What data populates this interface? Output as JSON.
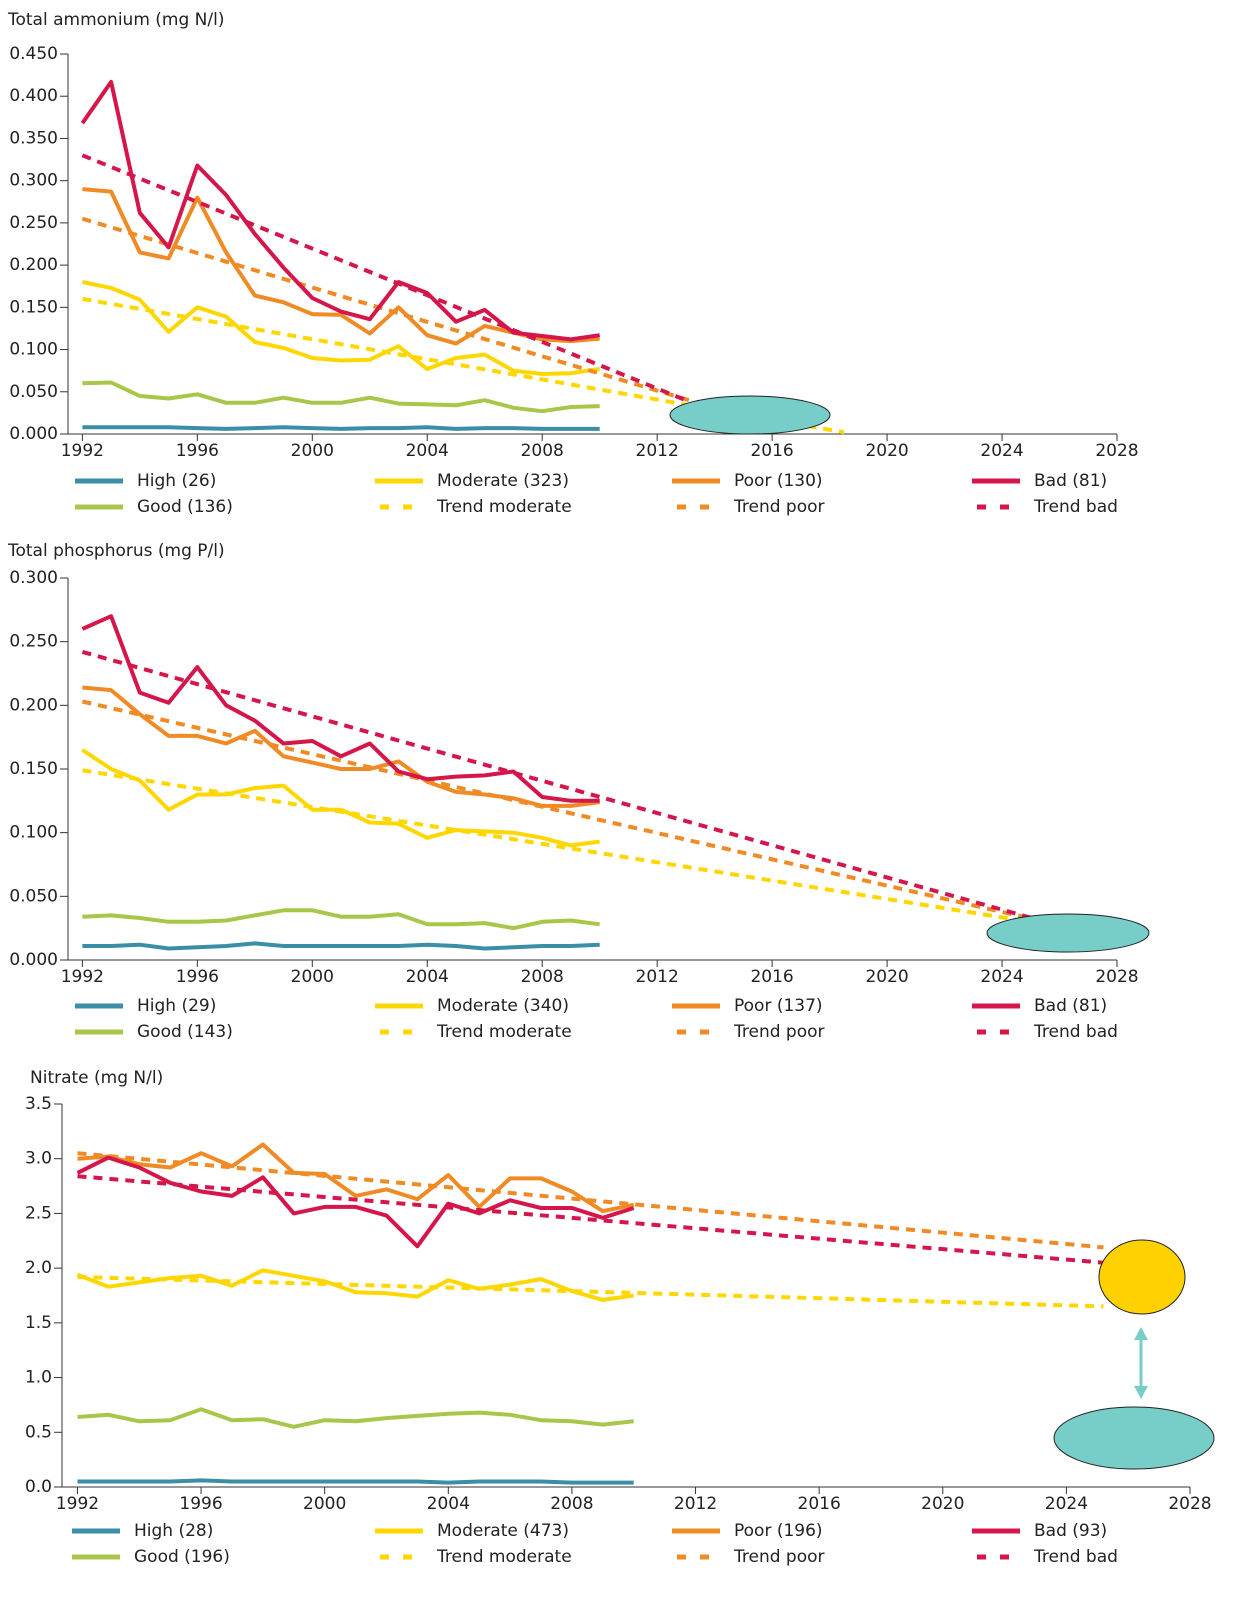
{
  "chart_data": [
    {
      "type": "line",
      "title": "Total ammonium (mg N/l)",
      "x": [
        1992,
        1993,
        1994,
        1995,
        1996,
        1997,
        1998,
        1999,
        2000,
        2001,
        2002,
        2003,
        2004,
        2005,
        2006,
        2007,
        2008,
        2009,
        2010
      ],
      "xlim": [
        1991.5,
        2028
      ],
      "xticks": [
        1992,
        1996,
        2000,
        2004,
        2008,
        2012,
        2016,
        2020,
        2024,
        2028
      ],
      "ylim": [
        0,
        0.45
      ],
      "yticks": [
        {
          "value": 0,
          "label": "0.000"
        },
        {
          "value": 0.05,
          "label": "0.050"
        },
        {
          "value": 0.1,
          "label": "0.100"
        },
        {
          "value": 0.15,
          "label": "0.150"
        },
        {
          "value": 0.2,
          "label": "0.200"
        },
        {
          "value": 0.25,
          "label": "0.250"
        },
        {
          "value": 0.3,
          "label": "0.300"
        },
        {
          "value": 0.35,
          "label": "0.350"
        },
        {
          "value": 0.4,
          "label": "0.400"
        },
        {
          "value": 0.45,
          "label": "0.450"
        }
      ],
      "series": [
        {
          "name": "High (26)",
          "color": "#3a8fa6",
          "values": [
            0.008,
            0.008,
            0.008,
            0.008,
            0.007,
            0.006,
            0.007,
            0.008,
            0.007,
            0.006,
            0.007,
            0.007,
            0.008,
            0.006,
            0.007,
            0.007,
            0.006,
            0.006,
            0.006
          ]
        },
        {
          "name": "Good (136)",
          "color": "#a8c64a",
          "values": [
            0.06,
            0.061,
            0.045,
            0.042,
            0.047,
            0.037,
            0.037,
            0.043,
            0.037,
            0.037,
            0.043,
            0.036,
            0.035,
            0.034,
            0.04,
            0.031,
            0.027,
            0.032,
            0.033
          ]
        },
        {
          "name": "Moderate (323)",
          "color": "#ffd700",
          "values": [
            0.18,
            0.173,
            0.159,
            0.121,
            0.15,
            0.139,
            0.109,
            0.102,
            0.09,
            0.087,
            0.088,
            0.104,
            0.077,
            0.09,
            0.094,
            0.075,
            0.071,
            0.072,
            0.077
          ]
        },
        {
          "name": "Trend moderate",
          "color": "#ffd700",
          "dashed": true,
          "x": [
            1992,
            2018.5
          ],
          "values": [
            0.16,
            0.002
          ]
        },
        {
          "name": "Poor (130)",
          "color": "#f08a24",
          "values": [
            0.29,
            0.287,
            0.215,
            0.208,
            0.28,
            0.215,
            0.164,
            0.156,
            0.142,
            0.141,
            0.119,
            0.15,
            0.117,
            0.107,
            0.128,
            0.12,
            0.112,
            0.11,
            0.113
          ]
        },
        {
          "name": "Trend poor",
          "color": "#f08a24",
          "dashed": true,
          "x": [
            1992,
            2013.6
          ],
          "values": [
            0.255,
            0.035
          ]
        },
        {
          "name": "Bad (81)",
          "color": "#d4164a",
          "values": [
            0.368,
            0.417,
            0.262,
            0.221,
            0.318,
            0.283,
            0.237,
            0.197,
            0.161,
            0.145,
            0.136,
            0.18,
            0.167,
            0.133,
            0.147,
            0.12,
            0.116,
            0.112,
            0.117
          ]
        },
        {
          "name": "Trend bad",
          "color": "#d4164a",
          "dashed": true,
          "x": [
            1992,
            2013
          ],
          "values": [
            0.33,
            0.04
          ]
        }
      ]
    },
    {
      "type": "line",
      "title": "Total phosphorus (mg P/l)",
      "x": [
        1992,
        1993,
        1994,
        1995,
        1996,
        1997,
        1998,
        1999,
        2000,
        2001,
        2002,
        2003,
        2004,
        2005,
        2006,
        2007,
        2008,
        2009,
        2010
      ],
      "xlim": [
        1991.5,
        2028
      ],
      "xticks": [
        1992,
        1996,
        2000,
        2004,
        2008,
        2012,
        2016,
        2020,
        2024,
        2028
      ],
      "ylim": [
        0,
        0.3
      ],
      "yticks": [
        {
          "value": 0,
          "label": "0.000"
        },
        {
          "value": 0.05,
          "label": "0.050"
        },
        {
          "value": 0.1,
          "label": "0.100"
        },
        {
          "value": 0.15,
          "label": "0.150"
        },
        {
          "value": 0.2,
          "label": "0.200"
        },
        {
          "value": 0.25,
          "label": "0.250"
        },
        {
          "value": 0.3,
          "label": "0.300"
        }
      ],
      "series": [
        {
          "name": "High (29)",
          "color": "#3a8fa6",
          "values": [
            0.011,
            0.011,
            0.012,
            0.009,
            0.01,
            0.011,
            0.013,
            0.011,
            0.011,
            0.011,
            0.011,
            0.011,
            0.012,
            0.011,
            0.009,
            0.01,
            0.011,
            0.011,
            0.012
          ]
        },
        {
          "name": "Good (143)",
          "color": "#a8c64a",
          "values": [
            0.034,
            0.035,
            0.033,
            0.03,
            0.03,
            0.031,
            0.035,
            0.039,
            0.039,
            0.034,
            0.034,
            0.036,
            0.028,
            0.028,
            0.029,
            0.025,
            0.03,
            0.031,
            0.028
          ]
        },
        {
          "name": "Moderate (340)",
          "color": "#ffd700",
          "values": [
            0.165,
            0.15,
            0.141,
            0.118,
            0.13,
            0.13,
            0.135,
            0.137,
            0.118,
            0.118,
            0.108,
            0.107,
            0.096,
            0.102,
            0.101,
            0.1,
            0.096,
            0.09,
            0.093
          ]
        },
        {
          "name": "Trend moderate",
          "color": "#ffd700",
          "dashed": true,
          "x": [
            1992,
            2025.5
          ],
          "values": [
            0.149,
            0.028
          ]
        },
        {
          "name": "Poor (137)",
          "color": "#f08a24",
          "values": [
            0.214,
            0.212,
            0.193,
            0.176,
            0.176,
            0.17,
            0.18,
            0.16,
            0.155,
            0.15,
            0.15,
            0.156,
            0.14,
            0.132,
            0.13,
            0.127,
            0.121,
            0.121,
            0.124
          ]
        },
        {
          "name": "Trend poor",
          "color": "#f08a24",
          "dashed": true,
          "x": [
            1992,
            2025.5
          ],
          "values": [
            0.203,
            0.03
          ]
        },
        {
          "name": "Bad (81)",
          "color": "#d4164a",
          "values": [
            0.26,
            0.27,
            0.21,
            0.202,
            0.23,
            0.2,
            0.188,
            0.17,
            0.172,
            0.16,
            0.17,
            0.148,
            0.142,
            0.144,
            0.145,
            0.148,
            0.128,
            0.125,
            0.125
          ]
        },
        {
          "name": "Trend bad",
          "color": "#d4164a",
          "dashed": true,
          "x": [
            1992,
            2025.5
          ],
          "values": [
            0.242,
            0.03
          ]
        }
      ]
    },
    {
      "type": "line",
      "title": "Nitrate (mg N/l)",
      "x": [
        1992,
        1993,
        1994,
        1995,
        1996,
        1997,
        1998,
        1999,
        2000,
        2001,
        2002,
        2003,
        2004,
        2005,
        2006,
        2007,
        2008,
        2009,
        2010
      ],
      "xlim": [
        1991.5,
        2028
      ],
      "xticks": [
        1992,
        1996,
        2000,
        2004,
        2008,
        2012,
        2016,
        2020,
        2024,
        2028
      ],
      "ylim": [
        0,
        3.5
      ],
      "yticks": [
        {
          "value": 0,
          "label": "0.0"
        },
        0.5,
        {
          "value": 1,
          "label": "1.0"
        },
        1.5,
        {
          "value": 2,
          "label": "2.0"
        },
        2.5,
        {
          "value": 3,
          "label": "3.0"
        },
        3.5
      ],
      "series": [
        {
          "name": "High (28)",
          "color": "#3a8fa6",
          "values": [
            0.05,
            0.05,
            0.05,
            0.05,
            0.06,
            0.05,
            0.05,
            0.05,
            0.05,
            0.05,
            0.05,
            0.05,
            0.04,
            0.05,
            0.05,
            0.05,
            0.04,
            0.04,
            0.04
          ]
        },
        {
          "name": "Good (196)",
          "color": "#a8c64a",
          "values": [
            0.64,
            0.66,
            0.6,
            0.61,
            0.71,
            0.61,
            0.62,
            0.55,
            0.61,
            0.6,
            0.63,
            0.65,
            0.67,
            0.68,
            0.66,
            0.61,
            0.6,
            0.57,
            0.6
          ]
        },
        {
          "name": "Moderate (473)",
          "color": "#ffd700",
          "values": [
            1.94,
            1.83,
            1.87,
            1.91,
            1.93,
            1.84,
            1.98,
            1.93,
            1.88,
            1.78,
            1.77,
            1.74,
            1.89,
            1.81,
            1.85,
            1.9,
            1.79,
            1.71,
            1.75
          ]
        },
        {
          "name": "Trend moderate",
          "color": "#ffd700",
          "dashed": true,
          "x": [
            1992,
            2025.2
          ],
          "values": [
            1.92,
            1.65
          ]
        },
        {
          "name": "Poor (196)",
          "color": "#f08a24",
          "values": [
            3.0,
            3.02,
            2.95,
            2.92,
            3.05,
            2.93,
            3.13,
            2.87,
            2.86,
            2.66,
            2.72,
            2.63,
            2.85,
            2.56,
            2.82,
            2.82,
            2.7,
            2.52,
            2.58
          ]
        },
        {
          "name": "Trend poor",
          "color": "#f08a24",
          "dashed": true,
          "x": [
            1992,
            2025.2
          ],
          "values": [
            3.05,
            2.19
          ]
        },
        {
          "name": "Bad (93)",
          "color": "#d4164a",
          "values": [
            2.87,
            3.01,
            2.92,
            2.78,
            2.7,
            2.66,
            2.83,
            2.5,
            2.56,
            2.56,
            2.48,
            2.2,
            2.59,
            2.5,
            2.62,
            2.55,
            2.55,
            2.46,
            2.55
          ]
        },
        {
          "name": "Trend bad",
          "color": "#d4164a",
          "dashed": true,
          "x": [
            1992,
            2025.2
          ],
          "values": [
            2.84,
            2.05
          ]
        }
      ]
    }
  ]
}
